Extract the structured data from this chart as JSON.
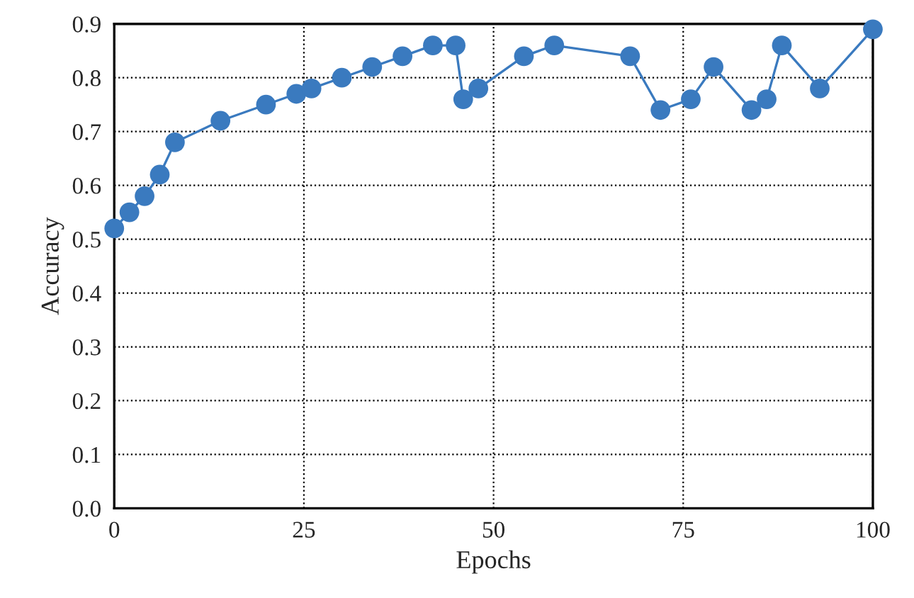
{
  "chart_data": {
    "type": "line",
    "xlabel": "Epochs",
    "ylabel": "Accuracy",
    "x": [
      0,
      2,
      4,
      6,
      8,
      14,
      20,
      24,
      26,
      30,
      34,
      38,
      42,
      45,
      46,
      48,
      54,
      58,
      68,
      72,
      76,
      79,
      84,
      86,
      88,
      93,
      100
    ],
    "series": [
      {
        "color": "#3a7abf",
        "values": [
          0.52,
          0.55,
          0.58,
          0.62,
          0.68,
          0.72,
          0.75,
          0.77,
          0.78,
          0.8,
          0.82,
          0.84,
          0.86,
          0.86,
          0.76,
          0.78,
          0.84,
          0.86,
          0.84,
          0.74,
          0.76,
          0.82,
          0.74,
          0.76,
          0.86,
          0.78,
          0.89
        ]
      }
    ],
    "xlim": [
      0,
      100
    ],
    "xticks": [
      0,
      25,
      50,
      75,
      100
    ],
    "ylim": [
      0,
      0.9
    ],
    "yticks": [
      {
        "value": 0,
        "label": "0.0"
      },
      0.1,
      0.2,
      0.3,
      0.4,
      0.5,
      0.6,
      0.7,
      0.8,
      0.9
    ],
    "grid": true,
    "marker": "circle",
    "line_style": "solid"
  }
}
